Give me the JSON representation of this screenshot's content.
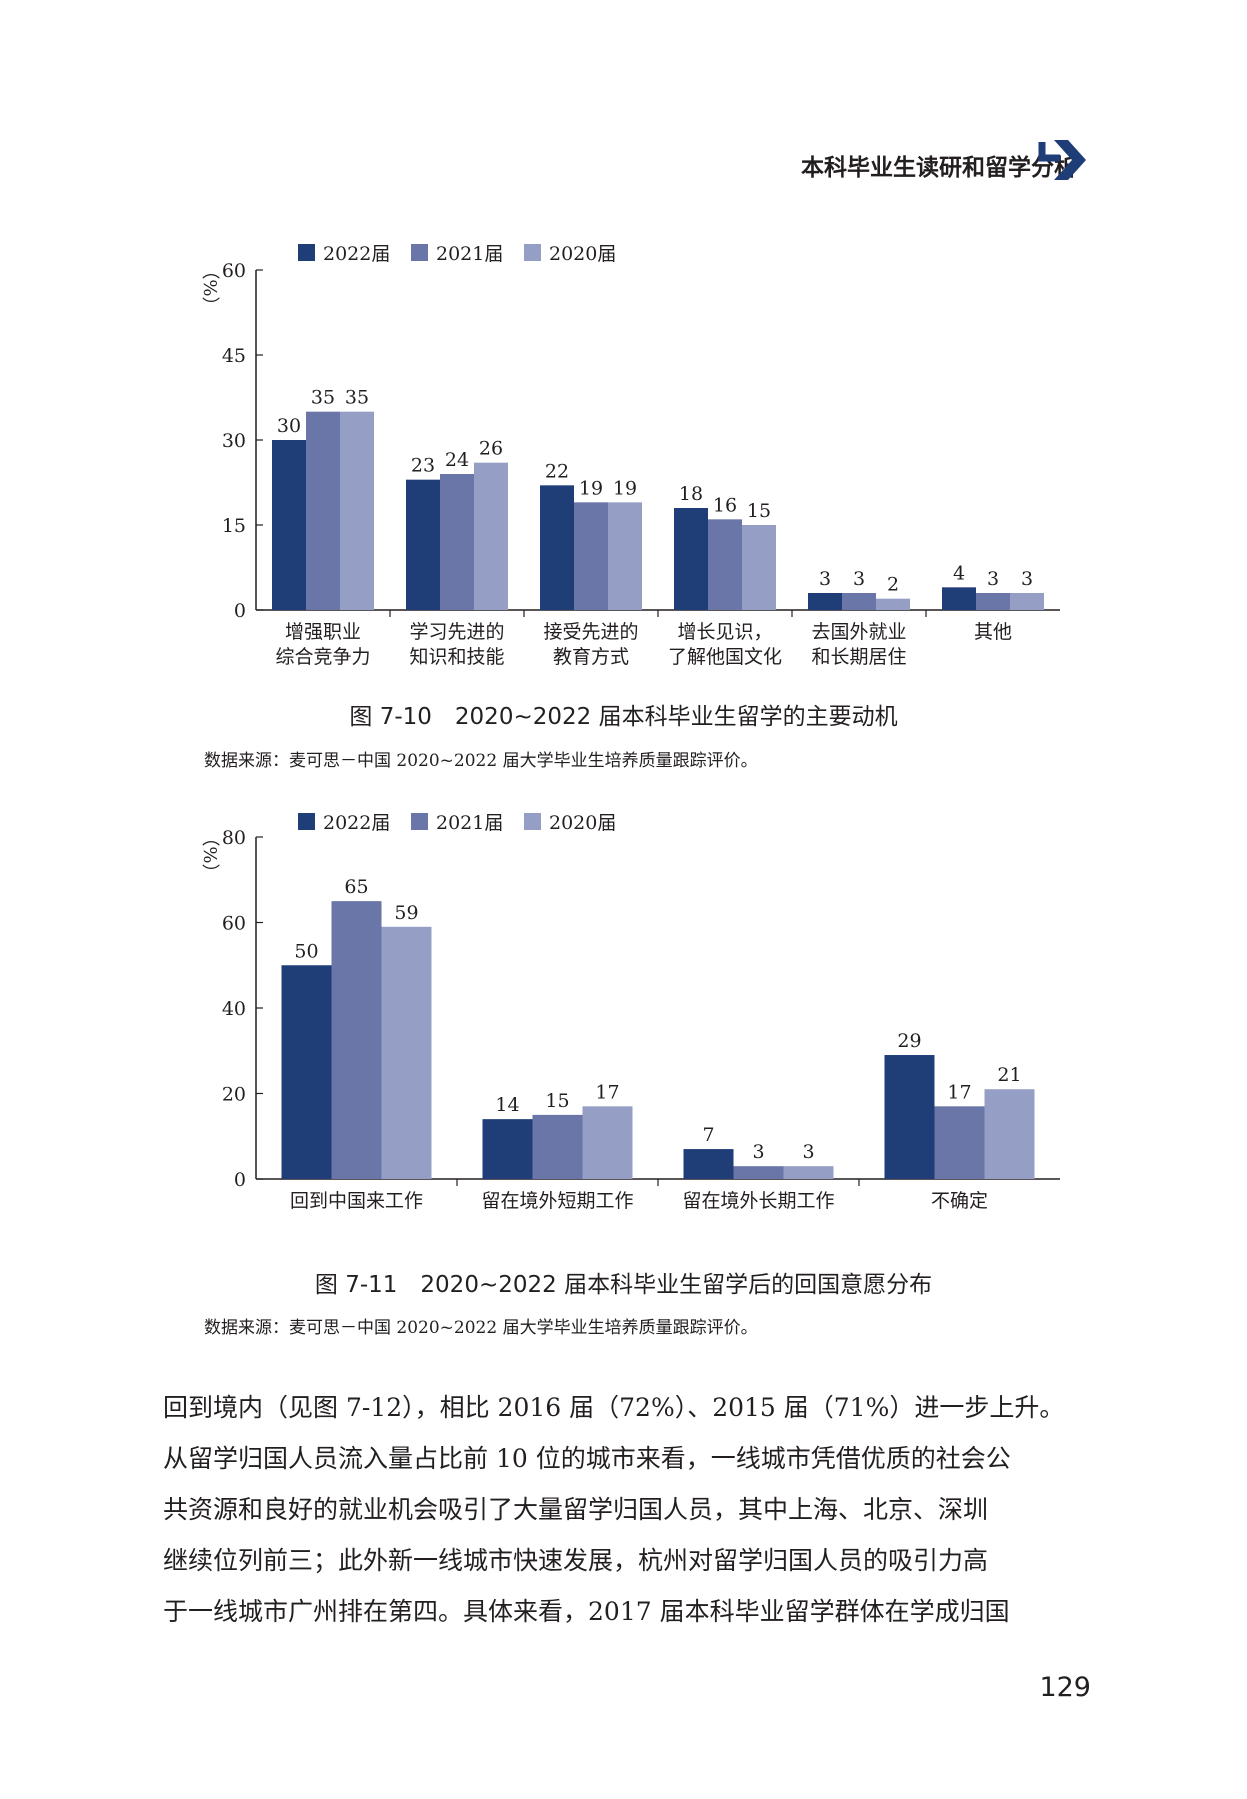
{
  "header": {
    "title": "本科毕业生读研和留学分析"
  },
  "colors": {
    "s2022": "#1f3e78",
    "s2021": "#6b76a8",
    "s2020": "#959fc6",
    "logo": "#1f3e78"
  },
  "figures": [
    {
      "caption": "图 7-10　2020~2022 届本科毕业生留学的主要动机",
      "source": "数据来源：麦可思－中国 2020~2022 届大学毕业生培养质量跟踪评价。"
    },
    {
      "caption": "图 7-11　2020~2022 届本科毕业生留学后的回国意愿分布",
      "source": "数据来源：麦可思－中国 2020~2022 届大学毕业生培养质量跟踪评价。"
    }
  ],
  "chart_data": [
    {
      "type": "bar",
      "ylabel": "（%）",
      "ylim": [
        0,
        60
      ],
      "yticks": [
        0,
        15,
        30,
        45,
        60
      ],
      "legend_position": "top",
      "categories": [
        [
          "增强职业",
          "综合竞争力"
        ],
        [
          "学习先进的",
          "知识和技能"
        ],
        [
          "接受先进的",
          "教育方式"
        ],
        [
          "增长见识，",
          "了解他国文化"
        ],
        [
          "去国外就业",
          "和长期居住"
        ],
        [
          "其他"
        ]
      ],
      "series": [
        {
          "name": "2022届",
          "values": [
            30,
            23,
            22,
            18,
            3,
            4
          ]
        },
        {
          "name": "2021届",
          "values": [
            35,
            24,
            19,
            16,
            3,
            3
          ]
        },
        {
          "name": "2020届",
          "values": [
            35,
            26,
            19,
            15,
            2,
            3
          ]
        }
      ]
    },
    {
      "type": "bar",
      "ylabel": "（%）",
      "ylim": [
        0,
        80
      ],
      "yticks": [
        0,
        20,
        40,
        60,
        80
      ],
      "legend_position": "top",
      "categories": [
        [
          "回到中国来工作"
        ],
        [
          "留在境外短期工作"
        ],
        [
          "留在境外长期工作"
        ],
        [
          "不确定"
        ]
      ],
      "series": [
        {
          "name": "2022届",
          "values": [
            50,
            14,
            7,
            29
          ]
        },
        {
          "name": "2021届",
          "values": [
            65,
            15,
            3,
            17
          ]
        },
        {
          "name": "2020届",
          "values": [
            59,
            17,
            3,
            21
          ]
        }
      ]
    }
  ],
  "body": {
    "lines": [
      "回到境内（见图 7-12），相比 2016 届（72%）、2015 届（71%）进一步上升。",
      "从留学归国人员流入量占比前 10 位的城市来看，一线城市凭借优质的社会公",
      "共资源和良好的就业机会吸引了大量留学归国人员，其中上海、北京、深圳",
      "继续位列前三；此外新一线城市快速发展，杭州对留学归国人员的吸引力高",
      "于一线城市广州排在第四。具体来看，2017 届本科毕业留学群体在学成归国"
    ]
  },
  "page_number": "129"
}
